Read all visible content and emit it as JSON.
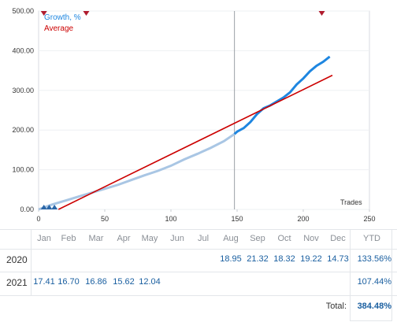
{
  "legend": {
    "growth": "Growth, %",
    "average": "Average",
    "growth_color": "#1e86e0",
    "average_color": "#cc0000"
  },
  "trades_label": "Trades",
  "chart_data": {
    "type": "line",
    "xlim": [
      0,
      250
    ],
    "ylim": [
      0,
      500
    ],
    "x_ticks": [
      "0",
      "50",
      "100",
      "150",
      "200",
      "250"
    ],
    "y_ticks": [
      "0.00",
      "100.00",
      "200.00",
      "300.00",
      "400.00",
      "500.00"
    ],
    "xlabel": "Trades",
    "series": [
      {
        "name": "Growth, %",
        "color": "#1e86e0",
        "x": [
          0,
          10,
          20,
          30,
          40,
          50,
          60,
          70,
          80,
          90,
          100,
          110,
          120,
          130,
          140,
          148,
          150,
          155,
          160,
          165,
          170,
          175,
          180,
          185,
          190,
          195,
          200,
          205,
          210,
          215,
          220
        ],
        "y": [
          0,
          12,
          22,
          32,
          42,
          52,
          62,
          74,
          86,
          97,
          110,
          126,
          140,
          155,
          172,
          190,
          196,
          205,
          220,
          240,
          255,
          262,
          272,
          282,
          295,
          315,
          330,
          348,
          362,
          372,
          385
        ]
      },
      {
        "name": "Average",
        "color": "#cc0000",
        "x": [
          15,
          222
        ],
        "y": [
          0,
          338
        ]
      }
    ],
    "vertical_marker_x": 148,
    "top_markers_x": [
      4,
      36,
      214
    ],
    "bottom_markers_x": [
      4,
      8,
      12
    ]
  },
  "table": {
    "months": [
      "Jan",
      "Feb",
      "Mar",
      "Apr",
      "May",
      "Jun",
      "Jul",
      "Aug",
      "Sep",
      "Oct",
      "Nov",
      "Dec"
    ],
    "ytd_header": "YTD",
    "rows": [
      {
        "year": "2020",
        "values": [
          "",
          "",
          "",
          "",
          "",
          "",
          "",
          "18.95",
          "21.32",
          "18.32",
          "19.22",
          "14.73"
        ],
        "ytd": "133.56%"
      },
      {
        "year": "2021",
        "values": [
          "17.41",
          "16.70",
          "16.86",
          "15.62",
          "12.04",
          "",
          "",
          "",
          "",
          "",
          "",
          ""
        ],
        "ytd": "107.44%"
      }
    ],
    "total_label": "Total:",
    "total_value": "384.48%"
  }
}
